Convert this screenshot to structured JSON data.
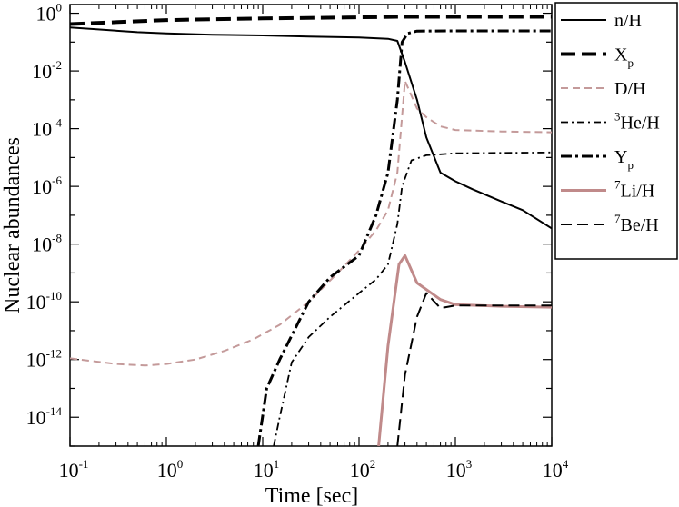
{
  "chart_data": {
    "type": "line",
    "xlabel": "Time [sec]",
    "ylabel": "Nuclear abundances",
    "xscale": "log",
    "yscale": "log",
    "xlim": [
      0.1,
      10000
    ],
    "ylim": [
      1e-15,
      2.0
    ],
    "x_ticks": [
      {
        "value": 0.1,
        "base": "10",
        "exp": "-1"
      },
      {
        "value": 1,
        "base": "10",
        "exp": "0"
      },
      {
        "value": 10,
        "base": "10",
        "exp": "1"
      },
      {
        "value": 100,
        "base": "10",
        "exp": "2"
      },
      {
        "value": 1000,
        "base": "10",
        "exp": "3"
      },
      {
        "value": 10000,
        "base": "10",
        "exp": "4"
      }
    ],
    "y_ticks": [
      {
        "value": 1,
        "base": "10",
        "exp": "0"
      },
      {
        "value": 0.01,
        "base": "10",
        "exp": "-2"
      },
      {
        "value": 0.0001,
        "base": "10",
        "exp": "-4"
      },
      {
        "value": 1e-06,
        "base": "10",
        "exp": "-6"
      },
      {
        "value": 1e-08,
        "base": "10",
        "exp": "-8"
      },
      {
        "value": 1e-10,
        "base": "10",
        "exp": "-10"
      },
      {
        "value": 1e-12,
        "base": "10",
        "exp": "-12"
      },
      {
        "value": 1e-14,
        "base": "10",
        "exp": "-14"
      }
    ],
    "legend_position": "right",
    "series": [
      {
        "name": "n/H",
        "label_main": "n/H",
        "label_sup": "",
        "label_sub": "",
        "color": "#000000",
        "width": 2,
        "dash": "",
        "points": [
          [
            0.1,
            0.32
          ],
          [
            0.5,
            0.22
          ],
          [
            1,
            0.2
          ],
          [
            3,
            0.18
          ],
          [
            10,
            0.17
          ],
          [
            30,
            0.155
          ],
          [
            100,
            0.145
          ],
          [
            200,
            0.13
          ],
          [
            250,
            0.11
          ],
          [
            300,
            0.02
          ],
          [
            400,
            0.001
          ],
          [
            500,
            5e-05
          ],
          [
            700,
            3e-06
          ],
          [
            1000,
            1.5e-06
          ],
          [
            1500,
            8e-07
          ],
          [
            3000,
            3e-07
          ],
          [
            5000,
            1.5e-07
          ],
          [
            10000,
            3.5e-08
          ]
        ]
      },
      {
        "name": "X_p",
        "label_main": "X",
        "label_sup": "",
        "label_sub": "p",
        "color": "#000000",
        "width": 4,
        "dash": "16,7",
        "points": [
          [
            0.1,
            0.42
          ],
          [
            1,
            0.58
          ],
          [
            10,
            0.66
          ],
          [
            100,
            0.72
          ],
          [
            250,
            0.75
          ],
          [
            1000,
            0.75
          ],
          [
            10000,
            0.75
          ]
        ]
      },
      {
        "name": "D/H",
        "label_main": "D/H",
        "label_sup": "",
        "label_sub": "",
        "color": "#c49a9a",
        "width": 2,
        "dash": "8,5",
        "points": [
          [
            0.1,
            1.1e-12
          ],
          [
            0.3,
            7e-13
          ],
          [
            0.6,
            6.2e-13
          ],
          [
            1,
            7e-13
          ],
          [
            2,
            1e-12
          ],
          [
            4,
            2e-12
          ],
          [
            8,
            5e-12
          ],
          [
            15,
            1.6e-11
          ],
          [
            30,
            1e-10
          ],
          [
            60,
            1e-09
          ],
          [
            100,
            6e-09
          ],
          [
            150,
            3e-08
          ],
          [
            200,
            1.5e-07
          ],
          [
            250,
            3e-06
          ],
          [
            300,
            0.0045
          ],
          [
            400,
            0.0005
          ],
          [
            500,
            0.00025
          ],
          [
            700,
            0.00012
          ],
          [
            1000,
            9e-05
          ],
          [
            3000,
            8e-05
          ],
          [
            10000,
            7.5e-05
          ]
        ]
      },
      {
        "name": "3He/H",
        "label_main": "He/H",
        "label_sup": "3",
        "label_sub": "",
        "color": "#000000",
        "width": 1.8,
        "dash": "8,4,2,4",
        "points": [
          [
            13,
            1e-15
          ],
          [
            15,
            1e-14
          ],
          [
            20,
            8e-13
          ],
          [
            30,
            6e-12
          ],
          [
            50,
            3e-11
          ],
          [
            100,
            2e-10
          ],
          [
            150,
            6e-10
          ],
          [
            200,
            2e-09
          ],
          [
            250,
            5e-08
          ],
          [
            280,
            1e-06
          ],
          [
            350,
            8e-06
          ],
          [
            500,
            1.2e-05
          ],
          [
            1000,
            1.4e-05
          ],
          [
            10000,
            1.5e-05
          ]
        ]
      },
      {
        "name": "Y_p",
        "label_main": "Y",
        "label_sup": "",
        "label_sub": "p",
        "color": "#000000",
        "width": 3,
        "dash": "12,4,3,4",
        "points": [
          [
            9,
            1e-15
          ],
          [
            11,
            1e-13
          ],
          [
            15,
            1e-12
          ],
          [
            30,
            1e-10
          ],
          [
            50,
            7e-10
          ],
          [
            100,
            4e-09
          ],
          [
            150,
            1e-07
          ],
          [
            200,
            3e-06
          ],
          [
            250,
            0.001
          ],
          [
            280,
            0.1
          ],
          [
            320,
            0.2
          ],
          [
            400,
            0.24
          ],
          [
            1000,
            0.245
          ],
          [
            10000,
            0.245
          ]
        ]
      },
      {
        "name": "7Li/H",
        "label_main": "Li/H",
        "label_sup": "7",
        "label_sub": "",
        "color": "#c08a8a",
        "width": 3,
        "dash": "",
        "points": [
          [
            160,
            1e-15
          ],
          [
            200,
            3e-12
          ],
          [
            260,
            2e-09
          ],
          [
            300,
            4e-09
          ],
          [
            400,
            4.5e-10
          ],
          [
            700,
            1.2e-10
          ],
          [
            1000,
            8e-11
          ],
          [
            3000,
            7e-11
          ],
          [
            10000,
            6.5e-11
          ]
        ]
      },
      {
        "name": "7Be/H",
        "label_main": "Be/H",
        "label_sup": "7",
        "label_sub": "",
        "color": "#000000",
        "width": 2,
        "dash": "12,6",
        "points": [
          [
            250,
            1e-15
          ],
          [
            300,
            3e-13
          ],
          [
            400,
            3e-11
          ],
          [
            500,
            2e-10
          ],
          [
            700,
            6e-11
          ],
          [
            1000,
            7.5e-11
          ],
          [
            3000,
            7.5e-11
          ],
          [
            10000,
            7.5e-11
          ]
        ]
      }
    ]
  }
}
